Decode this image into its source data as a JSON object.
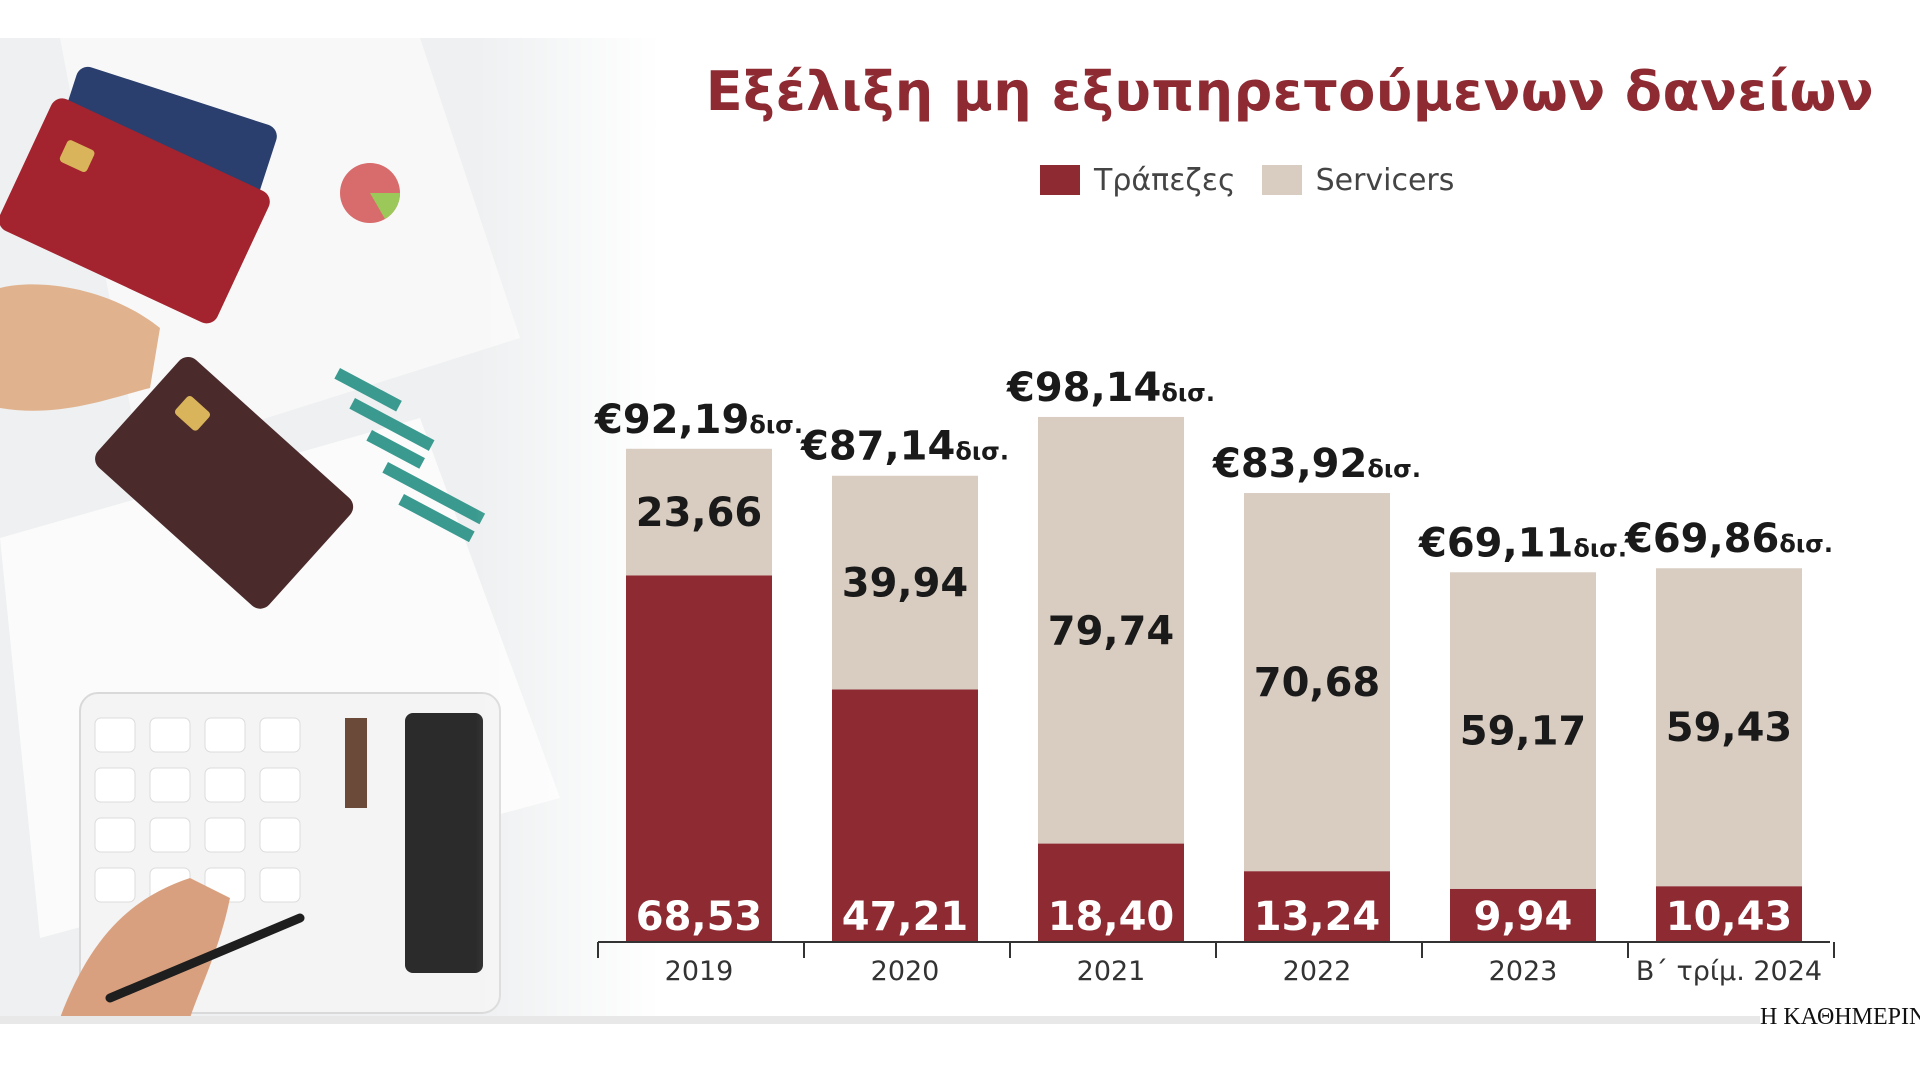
{
  "chart_data": {
    "type": "bar",
    "stacked": true,
    "title": "Εξέλιξη μη εξυπηρετούμενων δανείων",
    "categories": [
      "2019",
      "2020",
      "2021",
      "2022",
      "2023",
      "Β΄ τρίμ. 2024"
    ],
    "series": [
      {
        "name": "Τράπεζες",
        "color": "#8d2a32",
        "values": [
          68.53,
          47.21,
          18.4,
          13.24,
          9.94,
          10.43
        ]
      },
      {
        "name": "Servicers",
        "color": "#d9cdc2",
        "values": [
          23.66,
          39.94,
          79.74,
          70.68,
          59.17,
          59.43
        ]
      }
    ],
    "value_labels": {
      "banks": [
        "68,53",
        "47,21",
        "18,40",
        "13,24",
        "9,94",
        "10,43"
      ],
      "servicers": [
        "23,66",
        "39,94",
        "79,74",
        "70,68",
        "59,17",
        "59,43"
      ]
    },
    "totals": [
      92.19,
      87.14,
      98.14,
      83.92,
      69.11,
      69.86
    ],
    "total_labels": [
      "€92,19",
      "€87,14",
      "€98,14",
      "€83,92",
      "€69,11",
      "€69,86"
    ],
    "total_unit": "δισ.",
    "legend_position": "top",
    "grid": false,
    "ylim": [
      0,
      100
    ]
  },
  "brand": "Η ΚΑΘΗΜΕΡΙΝΗ"
}
